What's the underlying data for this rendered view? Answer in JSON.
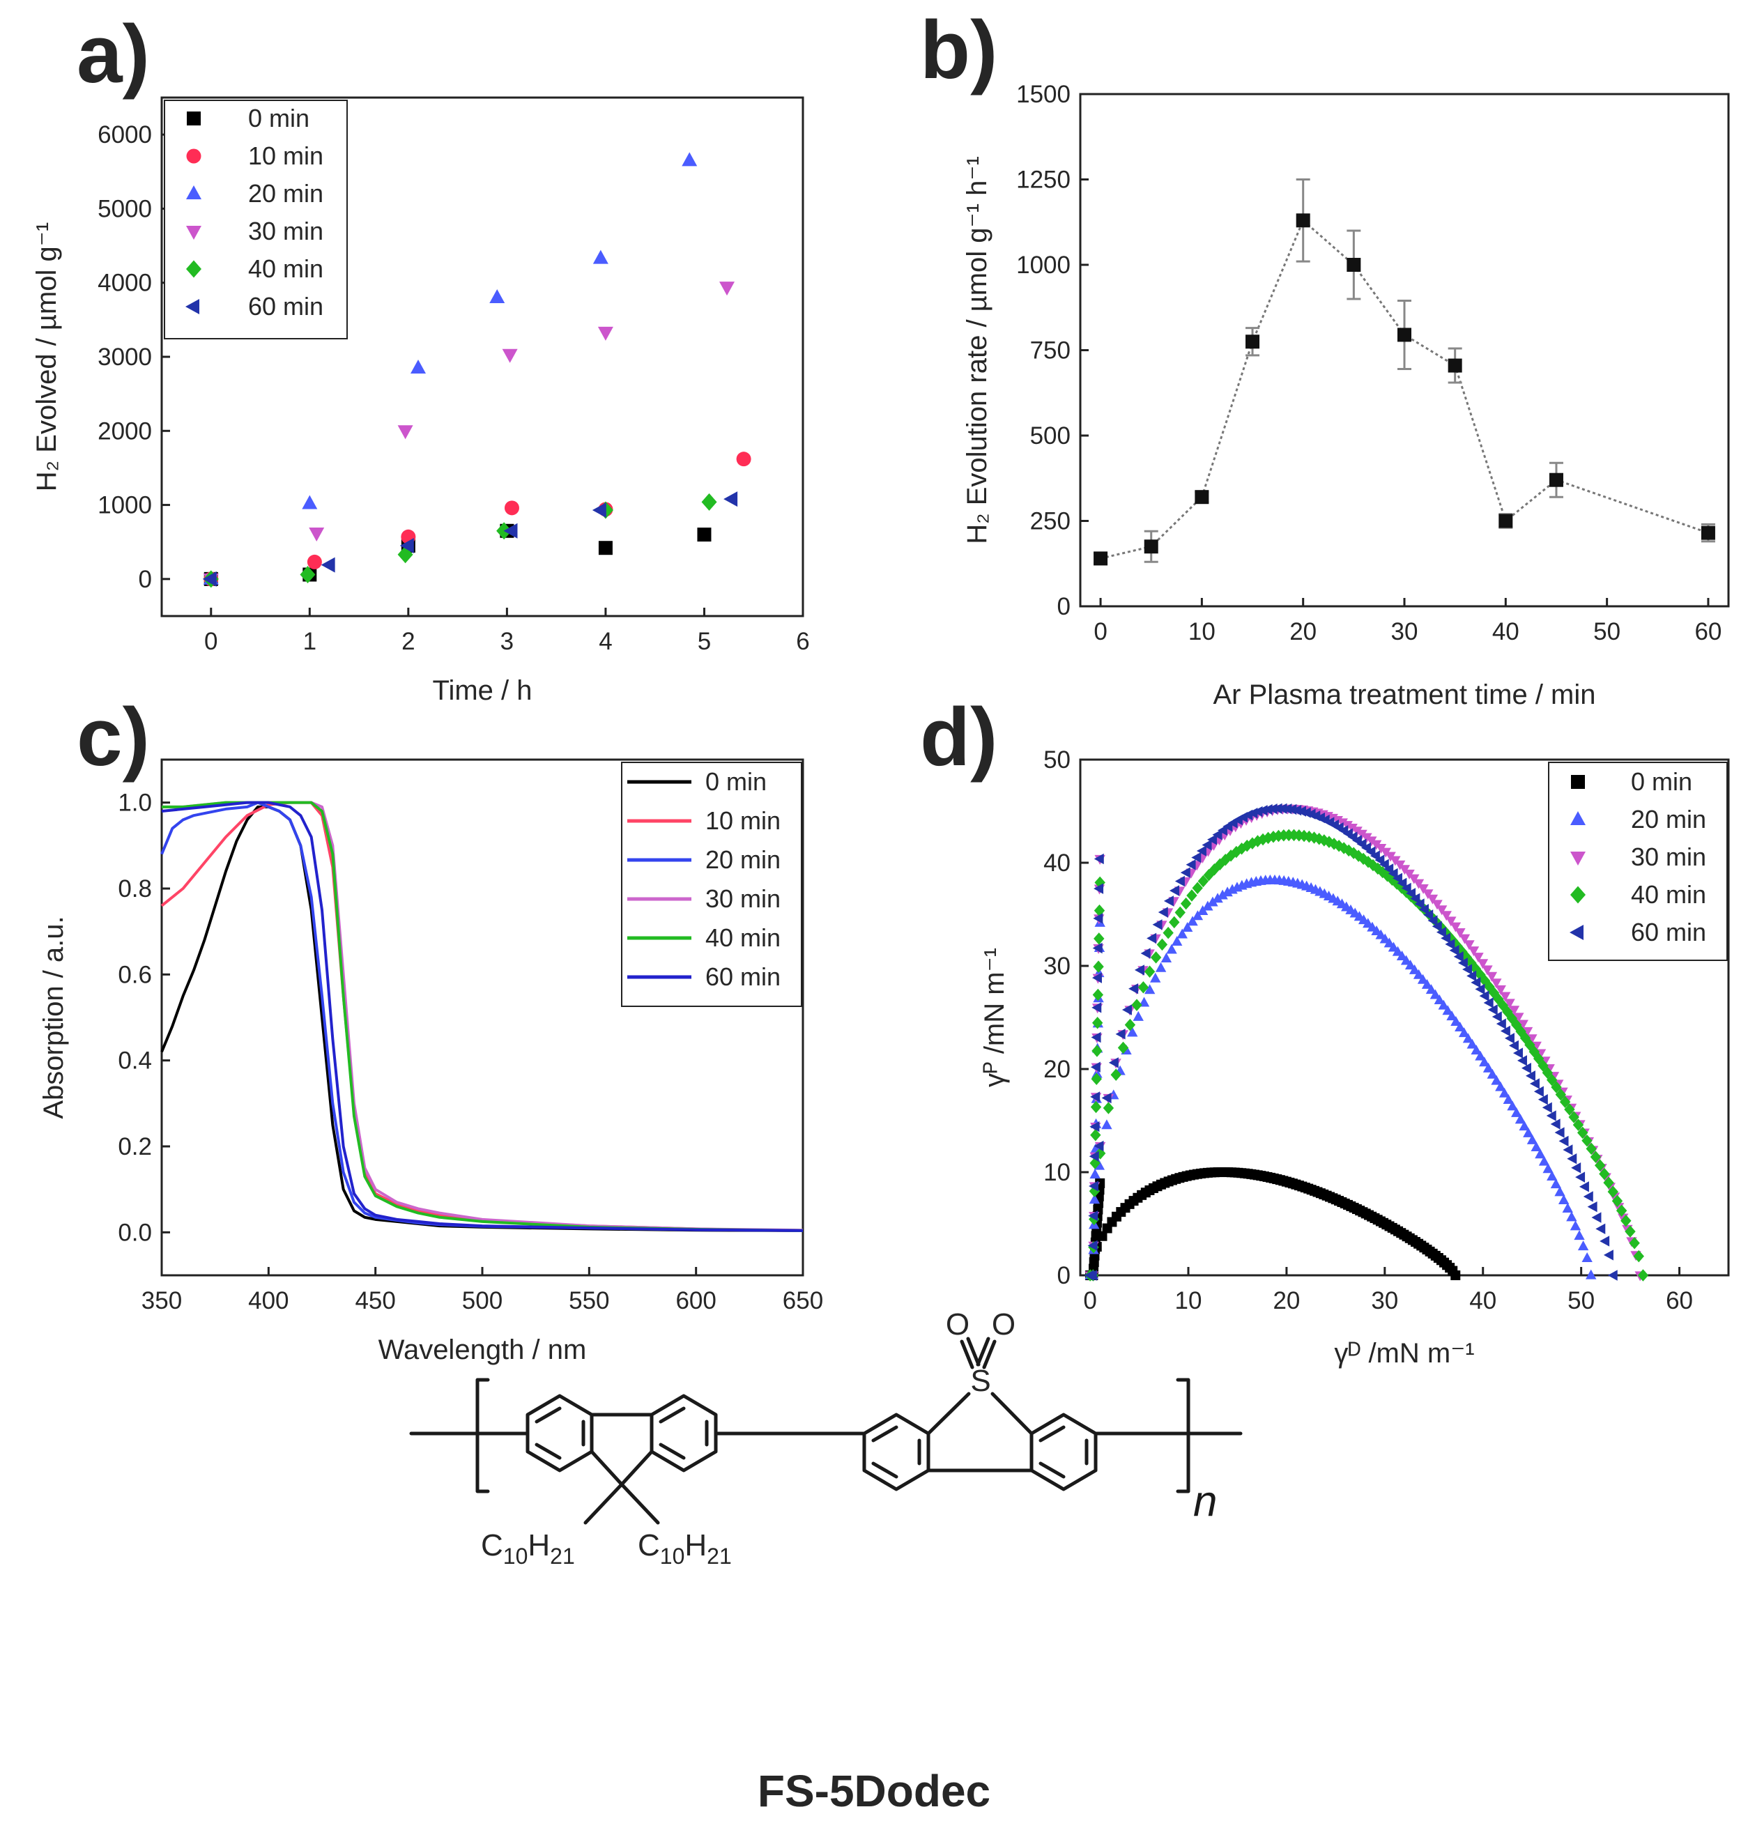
{
  "chart_data": [
    {
      "id": "a",
      "panel_label": "a)",
      "type": "scatter",
      "xlabel": "Time / h",
      "ylabel": "H₂ Evolved / µmol g⁻¹",
      "xlim": [
        -0.5,
        6
      ],
      "ylim": [
        -500,
        6500
      ],
      "xticks": [
        "0",
        "1",
        "2",
        "3",
        "4",
        "5",
        "6"
      ],
      "yticks": [
        "0",
        "1000",
        "2000",
        "3000",
        "4000",
        "5000",
        "6000"
      ],
      "legend_position": "top-left",
      "series": [
        {
          "name": "0 min",
          "marker": "square",
          "color": "#000000",
          "x": [
            0,
            1,
            2,
            3,
            4,
            5
          ],
          "y": [
            0,
            60,
            450,
            650,
            420,
            600
          ]
        },
        {
          "name": "10 min",
          "marker": "circle",
          "color": "#ff2d55",
          "x": [
            0,
            1.05,
            2,
            3.05,
            4,
            5.4
          ],
          "y": [
            0,
            230,
            570,
            960,
            940,
            1620
          ]
        },
        {
          "name": "20 min",
          "marker": "triangle-up",
          "color": "#4a5cff",
          "x": [
            0,
            1,
            2.1,
            2.9,
            3.95,
            4.85
          ],
          "y": [
            0,
            1020,
            2850,
            3800,
            4330,
            5650
          ]
        },
        {
          "name": "30 min",
          "marker": "triangle-down",
          "color": "#cc55cc",
          "x": [
            0,
            1.07,
            1.97,
            3.03,
            4,
            5.23
          ],
          "y": [
            0,
            620,
            2000,
            3030,
            3330,
            3940
          ]
        },
        {
          "name": "40 min",
          "marker": "diamond",
          "color": "#22bb22",
          "x": [
            0,
            0.98,
            1.97,
            2.97,
            4,
            5.05
          ],
          "y": [
            0,
            60,
            330,
            650,
            930,
            1040
          ]
        },
        {
          "name": "60 min",
          "marker": "triangle-left",
          "color": "#2233aa",
          "x": [
            0,
            1.2,
            2,
            3.05,
            3.95,
            5.28
          ],
          "y": [
            0,
            190,
            450,
            650,
            930,
            1080
          ]
        }
      ]
    },
    {
      "id": "b",
      "panel_label": "b)",
      "type": "line",
      "xlabel": "Ar Plasma treatment time / min",
      "ylabel": "H₂ Evolution rate / µmol g⁻¹ h⁻¹",
      "xlim": [
        -2,
        62
      ],
      "ylim": [
        0,
        1500
      ],
      "xticks": [
        "0",
        "10",
        "20",
        "30",
        "40",
        "50",
        "60"
      ],
      "yticks": [
        "0",
        "250",
        "500",
        "750",
        "1000",
        "1250",
        "1500"
      ],
      "x": [
        0,
        5,
        10,
        15,
        20,
        25,
        30,
        35,
        40,
        45,
        60
      ],
      "y": [
        140,
        175,
        320,
        775,
        1130,
        1000,
        795,
        705,
        250,
        370,
        215
      ],
      "err": [
        15,
        45,
        15,
        40,
        120,
        100,
        100,
        50,
        20,
        50,
        25
      ]
    },
    {
      "id": "c",
      "panel_label": "c)",
      "type": "line",
      "xlabel": "Wavelength / nm",
      "ylabel": "Absorption / a.u.",
      "xlim": [
        350,
        650
      ],
      "ylim": [
        -0.1,
        1.1
      ],
      "xticks": [
        "350",
        "400",
        "450",
        "500",
        "550",
        "600",
        "650"
      ],
      "yticks": [
        "0.0",
        "0.2",
        "0.4",
        "0.6",
        "0.8",
        "1.0"
      ],
      "legend_position": "top-right",
      "series": [
        {
          "name": "0 min",
          "color": "#000000",
          "x": [
            350,
            355,
            360,
            365,
            370,
            375,
            380,
            385,
            390,
            395,
            400,
            405,
            410,
            415,
            420,
            425,
            430,
            435,
            440,
            445,
            450,
            460,
            470,
            480,
            500,
            550,
            600,
            650
          ],
          "y": [
            0.42,
            0.48,
            0.55,
            0.61,
            0.68,
            0.76,
            0.84,
            0.91,
            0.96,
            0.99,
            0.99,
            0.98,
            0.96,
            0.9,
            0.75,
            0.5,
            0.25,
            0.1,
            0.05,
            0.035,
            0.03,
            0.025,
            0.02,
            0.015,
            0.012,
            0.008,
            0.005,
            0.004
          ]
        },
        {
          "name": "10 min",
          "color": "#ff4466",
          "x": [
            350,
            360,
            370,
            380,
            390,
            400,
            410,
            420,
            425,
            430,
            435,
            440,
            445,
            450,
            460,
            470,
            480,
            500,
            550,
            600,
            620
          ],
          "y": [
            0.76,
            0.8,
            0.86,
            0.92,
            0.97,
            0.995,
            1.0,
            1.0,
            0.97,
            0.85,
            0.55,
            0.28,
            0.14,
            0.09,
            0.065,
            0.05,
            0.04,
            0.028,
            0.015,
            0.008,
            0.006
          ]
        },
        {
          "name": "20 min",
          "color": "#3344ee",
          "x": [
            350,
            355,
            360,
            365,
            370,
            380,
            390,
            395,
            400,
            405,
            410,
            415,
            420,
            425,
            430,
            435,
            440,
            445,
            450,
            460,
            470,
            480,
            500,
            550,
            600,
            650
          ],
          "y": [
            0.88,
            0.94,
            0.96,
            0.97,
            0.975,
            0.985,
            0.99,
            1.0,
            0.99,
            0.98,
            0.96,
            0.9,
            0.78,
            0.55,
            0.3,
            0.14,
            0.07,
            0.045,
            0.035,
            0.028,
            0.022,
            0.018,
            0.014,
            0.01,
            0.006,
            0.004
          ]
        },
        {
          "name": "30 min",
          "color": "#cc66cc",
          "x": [
            350,
            360,
            370,
            380,
            390,
            400,
            410,
            420,
            425,
            430,
            435,
            440,
            445,
            450,
            460,
            470,
            480,
            500,
            550,
            600,
            650
          ],
          "y": [
            0.99,
            0.99,
            0.995,
            1.0,
            1.0,
            1.0,
            1.0,
            1.0,
            0.99,
            0.9,
            0.6,
            0.3,
            0.15,
            0.1,
            0.07,
            0.055,
            0.045,
            0.03,
            0.015,
            0.008,
            0.005
          ]
        },
        {
          "name": "40 min",
          "color": "#22bb22",
          "x": [
            350,
            360,
            370,
            380,
            390,
            400,
            410,
            420,
            425,
            430,
            435,
            440,
            445,
            450,
            460,
            470,
            480,
            500,
            550,
            600,
            650
          ],
          "y": [
            0.99,
            0.99,
            0.995,
            1.0,
            1.0,
            1.0,
            1.0,
            1.0,
            0.98,
            0.88,
            0.55,
            0.27,
            0.13,
            0.085,
            0.06,
            0.045,
            0.035,
            0.025,
            0.012,
            0.007,
            0.004
          ]
        },
        {
          "name": "60 min",
          "color": "#2222cc",
          "x": [
            350,
            360,
            370,
            380,
            390,
            400,
            410,
            415,
            420,
            425,
            430,
            435,
            440,
            445,
            450,
            460,
            470,
            480,
            500,
            550,
            600,
            650
          ],
          "y": [
            0.98,
            0.985,
            0.99,
            0.995,
            1.0,
            1.0,
            0.99,
            0.97,
            0.92,
            0.75,
            0.45,
            0.2,
            0.09,
            0.055,
            0.04,
            0.03,
            0.025,
            0.02,
            0.015,
            0.01,
            0.006,
            0.004
          ]
        }
      ]
    },
    {
      "id": "d",
      "panel_label": "d)",
      "type": "scatter",
      "xlabel": "γᴰ /mN m⁻¹",
      "ylabel": "γᴾ /mN m⁻¹",
      "xlim": [
        -1,
        65
      ],
      "ylim": [
        0,
        50
      ],
      "xticks": [
        "0",
        "10",
        "20",
        "30",
        "40",
        "50",
        "60"
      ],
      "yticks": [
        "0",
        "10",
        "20",
        "30",
        "40",
        "50"
      ],
      "legend_position": "top-right",
      "series": [
        {
          "name": "0 min",
          "marker": "square",
          "color": "#000000",
          "max_x": 37.2,
          "max_y": 10.5
        },
        {
          "name": "20 min",
          "marker": "triangle-up",
          "color": "#4a5cff",
          "max_x": 51.0,
          "max_y": 40.2
        },
        {
          "name": "30 min",
          "marker": "triangle-down",
          "color": "#cc55cc",
          "max_x": 56.0,
          "max_y": 47.5
        },
        {
          "name": "40 min",
          "marker": "diamond",
          "color": "#22bb22",
          "max_x": 56.3,
          "max_y": 44.8
        },
        {
          "name": "60 min",
          "marker": "triangle-left",
          "color": "#2233aa",
          "max_x": 53.3,
          "max_y": 47.5
        }
      ]
    }
  ],
  "structure": {
    "title": "FS-5Dodec",
    "atoms": {
      "sulfur": "S",
      "oxygen": "O",
      "subscript": "n",
      "alkyl_c": "C",
      "alkyl_c_count": "10",
      "alkyl_h": "H",
      "alkyl_h_count": "21"
    }
  }
}
